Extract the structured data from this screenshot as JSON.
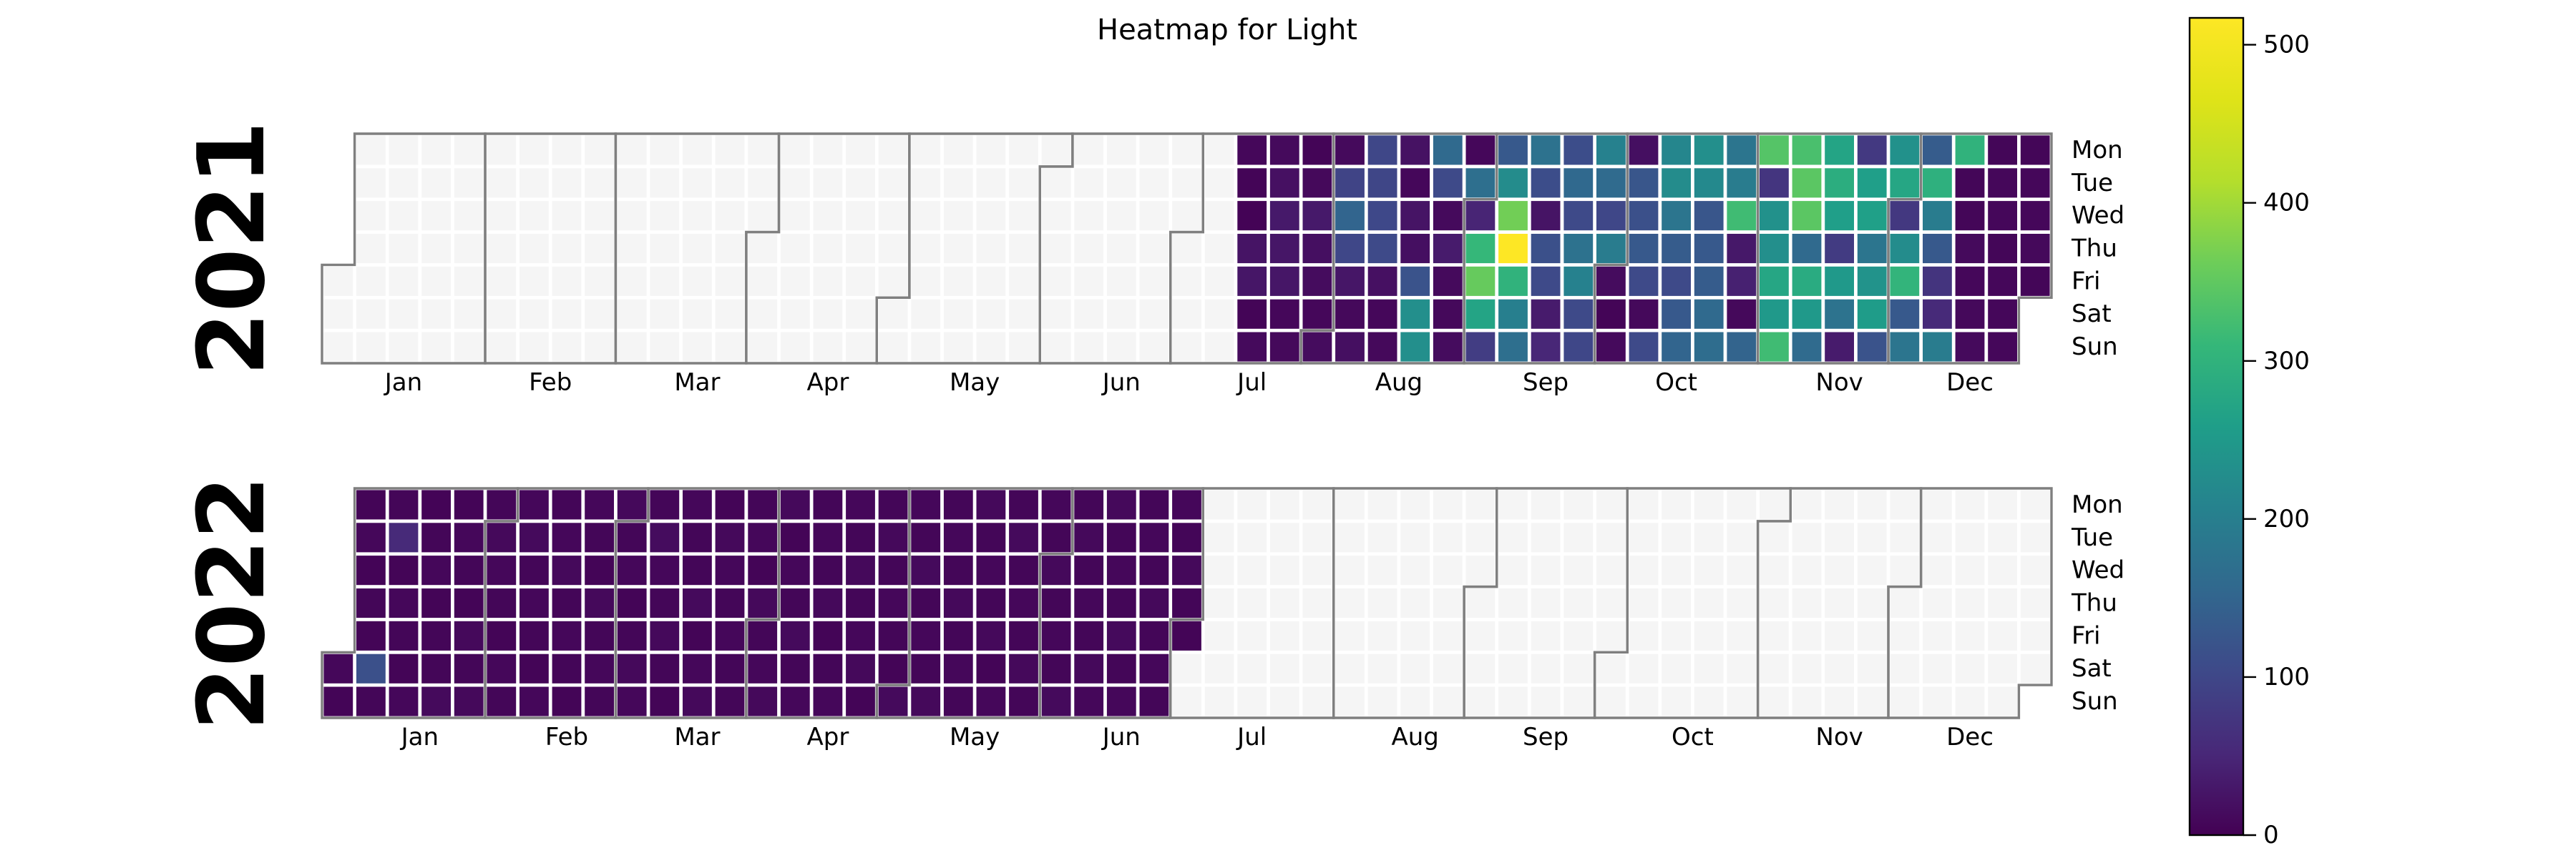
{
  "chart_data": {
    "type": "heatmap",
    "title": "Heatmap for Light",
    "colormap": "viridis",
    "empty_color": "#f5f5f5",
    "outline_color": "#7f7f7f",
    "year_label_color": "#808080",
    "day_labels": [
      "Mon",
      "Tue",
      "Wed",
      "Thu",
      "Fri",
      "Sat",
      "Sun"
    ],
    "month_labels": [
      "Jan",
      "Feb",
      "Mar",
      "Apr",
      "May",
      "Jun",
      "Jul",
      "Aug",
      "Sep",
      "Oct",
      "Nov",
      "Dec"
    ],
    "colorbar": {
      "vmin": 0,
      "vmax": 517,
      "ticks": [
        0,
        100,
        200,
        300,
        400,
        500
      ],
      "tick_labels": [
        "0",
        "100",
        "200",
        "300",
        "400",
        "500"
      ]
    },
    "years": [
      {
        "label": "2021",
        "jan1_weekday": 4,
        "num_days": 365,
        "weeks": [
          [
            null,
            null,
            null,
            null,
            null,
            null,
            null
          ],
          [
            null,
            null,
            null,
            null,
            null,
            null,
            null
          ],
          [
            null,
            null,
            null,
            null,
            null,
            null,
            null
          ],
          [
            null,
            null,
            null,
            null,
            null,
            null,
            null
          ],
          [
            null,
            null,
            null,
            null,
            null,
            null,
            null
          ],
          [
            null,
            null,
            null,
            null,
            null,
            null,
            null
          ],
          [
            null,
            null,
            null,
            null,
            null,
            null,
            null
          ],
          [
            null,
            null,
            null,
            null,
            null,
            null,
            null
          ],
          [
            null,
            null,
            null,
            null,
            null,
            null,
            null
          ],
          [
            null,
            null,
            null,
            null,
            null,
            null,
            null
          ],
          [
            null,
            null,
            null,
            null,
            null,
            null,
            null
          ],
          [
            null,
            null,
            null,
            null,
            null,
            null,
            null
          ],
          [
            null,
            null,
            null,
            null,
            null,
            null,
            null
          ],
          [
            null,
            null,
            null,
            null,
            null,
            null,
            null
          ],
          [
            null,
            null,
            null,
            null,
            null,
            null,
            null
          ],
          [
            null,
            null,
            null,
            null,
            null,
            null,
            null
          ],
          [
            null,
            null,
            null,
            null,
            null,
            null,
            null
          ],
          [
            null,
            null,
            null,
            null,
            null,
            null,
            null
          ],
          [
            null,
            null,
            null,
            null,
            null,
            null,
            null
          ],
          [
            null,
            null,
            null,
            null,
            null,
            null,
            null
          ],
          [
            null,
            null,
            null,
            null,
            null,
            null,
            null
          ],
          [
            null,
            null,
            null,
            null,
            null,
            null,
            null
          ],
          [
            null,
            null,
            null,
            null,
            null,
            null,
            null
          ],
          [
            null,
            null,
            null,
            null,
            null,
            null,
            null
          ],
          [
            null,
            null,
            null,
            null,
            null,
            null,
            null
          ],
          [
            null,
            null,
            null,
            null,
            null,
            null,
            null
          ],
          [
            null,
            null,
            null,
            null,
            null,
            null,
            null
          ],
          [
            null,
            null,
            null,
            null,
            null,
            null,
            null
          ],
          [
            8,
            5,
            3,
            25,
            28,
            5,
            12
          ],
          [
            12,
            20,
            32,
            28,
            28,
            8,
            10
          ],
          [
            5,
            10,
            32,
            18,
            15,
            8,
            14
          ],
          [
            12,
            95,
            150,
            100,
            28,
            10,
            18
          ],
          [
            100,
            98,
            102,
            105,
            20,
            8,
            10
          ],
          [
            22,
            8,
            25,
            18,
            120,
            230,
            230
          ],
          [
            160,
            105,
            12,
            35,
            12,
            10,
            15
          ],
          [
            8,
            170,
            48,
            310,
            355,
            270,
            85
          ],
          [
            130,
            225,
            365,
            517,
            300,
            200,
            170
          ],
          [
            175,
            110,
            25,
            115,
            105,
            35,
            50
          ],
          [
            110,
            158,
            105,
            175,
            205,
            105,
            100
          ],
          [
            205,
            162,
            100,
            195,
            15,
            5,
            12
          ],
          [
            18,
            125,
            115,
            130,
            105,
            10,
            105
          ],
          [
            215,
            225,
            180,
            135,
            105,
            130,
            150
          ],
          [
            230,
            220,
            125,
            130,
            135,
            160,
            165
          ],
          [
            180,
            195,
            320,
            30,
            42,
            10,
            148
          ],
          [
            340,
            72,
            235,
            230,
            275,
            250,
            320
          ],
          [
            330,
            345,
            345,
            160,
            285,
            250,
            162
          ],
          [
            270,
            290,
            260,
            82,
            250,
            176,
            35
          ],
          [
            78,
            260,
            262,
            180,
            238,
            255,
            120
          ],
          [
            235,
            275,
            76,
            225,
            305,
            130,
            180
          ],
          [
            135,
            295,
            195,
            130,
            70,
            55,
            195
          ],
          [
            300,
            6,
            6,
            12,
            8,
            10,
            12
          ],
          [
            6,
            8,
            8,
            6,
            8,
            8,
            8
          ],
          [
            6,
            8,
            8,
            10,
            6,
            null,
            null
          ]
        ]
      },
      {
        "label": "2022",
        "jan1_weekday": 5,
        "num_days": 365,
        "weeks": [
          [
            null,
            null,
            null,
            null,
            null,
            8,
            5
          ],
          [
            5,
            8,
            4,
            6,
            5,
            115,
            6
          ],
          [
            6,
            55,
            5,
            8,
            6,
            5,
            8
          ],
          [
            4,
            6,
            8,
            5,
            6,
            6,
            12
          ],
          [
            5,
            8,
            6,
            5,
            10,
            6,
            10
          ],
          [
            6,
            10,
            8,
            6,
            5,
            8,
            6
          ],
          [
            8,
            12,
            6,
            8,
            6,
            5,
            8
          ],
          [
            6,
            8,
            10,
            6,
            8,
            6,
            5
          ],
          [
            8,
            6,
            5,
            10,
            6,
            8,
            6
          ],
          [
            10,
            6,
            8,
            5,
            6,
            10,
            8
          ],
          [
            6,
            14,
            8,
            6,
            10,
            6,
            5
          ],
          [
            8,
            6,
            6,
            12,
            5,
            8,
            10
          ],
          [
            5,
            10,
            8,
            6,
            8,
            6,
            6
          ],
          [
            6,
            8,
            5,
            10,
            6,
            8,
            10
          ],
          [
            10,
            5,
            8,
            6,
            12,
            6,
            8
          ],
          [
            6,
            8,
            6,
            10,
            5,
            6,
            8
          ],
          [
            8,
            6,
            10,
            6,
            8,
            10,
            5
          ],
          [
            6,
            10,
            6,
            8,
            6,
            5,
            12
          ],
          [
            8,
            6,
            12,
            6,
            8,
            6,
            10
          ],
          [
            6,
            8,
            6,
            10,
            6,
            8,
            6
          ],
          [
            10,
            6,
            8,
            6,
            10,
            5,
            8
          ],
          [
            6,
            12,
            6,
            8,
            6,
            10,
            6
          ],
          [
            8,
            6,
            10,
            6,
            8,
            6,
            12
          ],
          [
            6,
            10,
            6,
            8,
            6,
            10,
            8
          ],
          [
            10,
            6,
            8,
            6,
            12,
            6,
            8
          ],
          [
            6,
            8,
            6,
            10,
            6,
            8,
            6
          ],
          [
            8,
            6,
            10,
            6,
            5,
            null,
            null
          ],
          [
            null,
            null,
            null,
            null,
            null,
            null,
            null
          ],
          [
            null,
            null,
            null,
            null,
            null,
            null,
            null
          ],
          [
            null,
            null,
            null,
            null,
            null,
            null,
            null
          ],
          [
            null,
            null,
            null,
            null,
            null,
            null,
            null
          ],
          [
            null,
            null,
            null,
            null,
            null,
            null,
            null
          ],
          [
            null,
            null,
            null,
            null,
            null,
            null,
            null
          ],
          [
            null,
            null,
            null,
            null,
            null,
            null,
            null
          ],
          [
            null,
            null,
            null,
            null,
            null,
            null,
            null
          ],
          [
            null,
            null,
            null,
            null,
            null,
            null,
            null
          ],
          [
            null,
            null,
            null,
            null,
            null,
            null,
            null
          ],
          [
            null,
            null,
            null,
            null,
            null,
            null,
            null
          ],
          [
            null,
            null,
            null,
            null,
            null,
            null,
            null
          ],
          [
            null,
            null,
            null,
            null,
            null,
            null,
            null
          ],
          [
            null,
            null,
            null,
            null,
            null,
            null,
            null
          ],
          [
            null,
            null,
            null,
            null,
            null,
            null,
            null
          ],
          [
            null,
            null,
            null,
            null,
            null,
            null,
            null
          ],
          [
            null,
            null,
            null,
            null,
            null,
            null,
            null
          ],
          [
            null,
            null,
            null,
            null,
            null,
            null,
            null
          ],
          [
            null,
            null,
            null,
            null,
            null,
            null,
            null
          ],
          [
            null,
            null,
            null,
            null,
            null,
            null,
            null
          ],
          [
            null,
            null,
            null,
            null,
            null,
            null,
            null
          ],
          [
            null,
            null,
            null,
            null,
            null,
            null,
            null
          ],
          [
            null,
            null,
            null,
            null,
            null,
            null,
            null
          ],
          [
            null,
            null,
            null,
            null,
            null,
            null,
            null
          ],
          [
            null,
            null,
            null,
            null,
            null,
            null,
            null
          ],
          [
            null,
            null,
            null,
            null,
            null,
            null,
            null
          ]
        ]
      }
    ]
  }
}
